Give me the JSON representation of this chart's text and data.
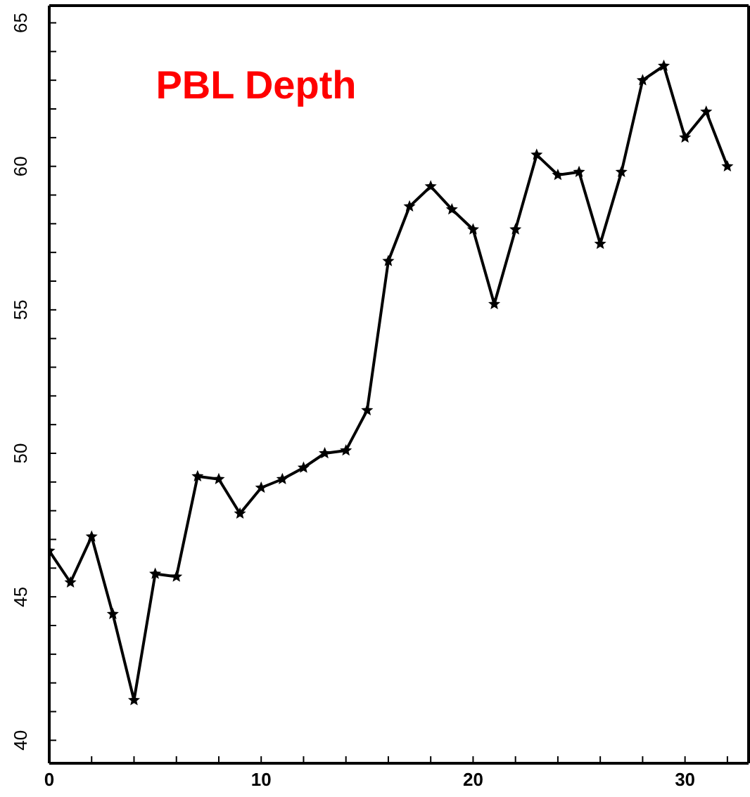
{
  "chart_data": {
    "type": "line",
    "title": "PBL Depth",
    "x": [
      0,
      1,
      2,
      3,
      4,
      5,
      6,
      7,
      8,
      9,
      10,
      11,
      12,
      13,
      14,
      15,
      16,
      17,
      18,
      19,
      20,
      21,
      22,
      23,
      24,
      25,
      26,
      27,
      28,
      29,
      30,
      31,
      32
    ],
    "series": [
      {
        "color": "#000000",
        "values": [
          46.6,
          45.5,
          47.1,
          44.4,
          41.4,
          45.8,
          45.7,
          49.2,
          49.1,
          47.9,
          48.8,
          49.1,
          49.5,
          50.0,
          50.1,
          51.5,
          56.7,
          58.6,
          59.3,
          58.5,
          57.8,
          55.2,
          57.8,
          60.4,
          59.7,
          59.8,
          57.3,
          59.8,
          63.0,
          63.5,
          61.0,
          61.9,
          60.0
        ]
      }
    ],
    "xlim": [
      0,
      33
    ],
    "ylim": [
      39.2,
      65.6
    ],
    "xticks": [
      0,
      {
        "value": 2,
        "label": null
      },
      {
        "value": 4,
        "label": null
      },
      {
        "value": 6,
        "label": null
      },
      {
        "value": 8,
        "label": null
      },
      10,
      {
        "value": 12,
        "label": null
      },
      {
        "value": 14,
        "label": null
      },
      {
        "value": 16,
        "label": null
      },
      {
        "value": 18,
        "label": null
      },
      20,
      {
        "value": 22,
        "label": null
      },
      {
        "value": 24,
        "label": null
      },
      {
        "value": 26,
        "label": null
      },
      {
        "value": 28,
        "label": null
      },
      30,
      {
        "value": 32,
        "label": null
      }
    ],
    "yticks": [
      40,
      {
        "value": 41,
        "label": null
      },
      {
        "value": 42,
        "label": null
      },
      {
        "value": 43,
        "label": null
      },
      {
        "value": 44,
        "label": null
      },
      45,
      {
        "value": 46,
        "label": null
      },
      {
        "value": 47,
        "label": null
      },
      {
        "value": 48,
        "label": null
      },
      {
        "value": 49,
        "label": null
      },
      50,
      {
        "value": 51,
        "label": null
      },
      {
        "value": 52,
        "label": null
      },
      {
        "value": 53,
        "label": null
      },
      {
        "value": 54,
        "label": null
      },
      55,
      {
        "value": 56,
        "label": null
      },
      {
        "value": 57,
        "label": null
      },
      {
        "value": 58,
        "label": null
      },
      {
        "value": 59,
        "label": null
      },
      60,
      {
        "value": 61,
        "label": null
      },
      {
        "value": 62,
        "label": null
      },
      {
        "value": 63,
        "label": null
      },
      {
        "value": 64,
        "label": null
      },
      65
    ],
    "marker": "star",
    "line_style": "solid",
    "grid": false,
    "legend": false
  }
}
